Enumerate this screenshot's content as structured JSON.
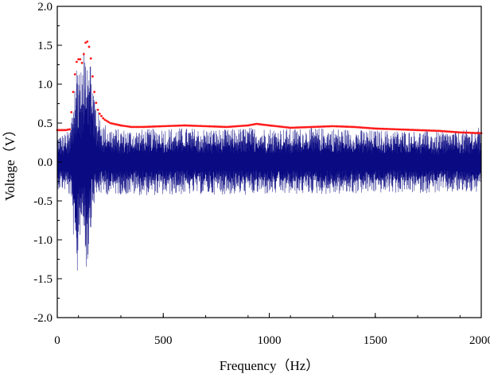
{
  "chart_data": {
    "type": "line",
    "title": "",
    "xlabel": "Frequency（Hz）",
    "ylabel": "Voltage（V）",
    "xlim": [
      0,
      2000
    ],
    "ylim": [
      -2.0,
      2.0
    ],
    "x_ticks": [
      0,
      500,
      1000,
      1500,
      2000
    ],
    "x_tick_labels": [
      "0",
      "500",
      "1000",
      "1500",
      "2000"
    ],
    "y_ticks": [
      2.0,
      1.5,
      1.0,
      0.5,
      0.0,
      -0.5,
      -1.0,
      -1.5,
      -2.0
    ],
    "y_tick_labels": [
      "2.0",
      "1.5",
      "1.0",
      "0.5",
      "0.0",
      "-0.5",
      "-1.0",
      "-1.5",
      "-2.0"
    ],
    "grid": false,
    "legend": "none",
    "series": [
      {
        "style": "signal",
        "color": "#0a0a82",
        "x": [
          0,
          20,
          40,
          60,
          70,
          80,
          90,
          100,
          110,
          120,
          130,
          140,
          150,
          160,
          170,
          180,
          190,
          200,
          220,
          250,
          300,
          400,
          500,
          600,
          700,
          800,
          900,
          950,
          1000,
          1100,
          1200,
          1300,
          1400,
          1500,
          1600,
          1700,
          1800,
          1900,
          2000
        ],
        "upper": [
          0.35,
          0.36,
          0.37,
          0.42,
          0.7,
          1.05,
          1.3,
          1.5,
          1.2,
          1.25,
          1.55,
          1.75,
          1.6,
          1.3,
          1.05,
          0.85,
          0.7,
          0.6,
          0.5,
          0.45,
          0.42,
          0.42,
          0.44,
          0.44,
          0.43,
          0.42,
          0.45,
          0.44,
          0.44,
          0.43,
          0.44,
          0.44,
          0.42,
          0.41,
          0.41,
          0.4,
          0.39,
          0.4,
          0.45
        ],
        "lower": [
          -0.35,
          -0.36,
          -0.38,
          -0.45,
          -0.75,
          -1.1,
          -1.8,
          -1.2,
          -0.9,
          -0.8,
          -1.1,
          -1.5,
          -1.1,
          -0.8,
          -0.6,
          -0.5,
          -0.45,
          -0.42,
          -0.42,
          -0.42,
          -0.42,
          -0.43,
          -0.43,
          -0.42,
          -0.42,
          -0.42,
          -0.43,
          -0.42,
          -0.42,
          -0.42,
          -0.41,
          -0.42,
          -0.41,
          -0.4,
          -0.4,
          -0.4,
          -0.4,
          -0.4,
          -0.4
        ]
      },
      {
        "style": "envelope",
        "color": "#ff1a1a",
        "x": [
          0,
          40,
          60,
          70,
          80,
          90,
          100,
          110,
          120,
          130,
          140,
          150,
          160,
          170,
          180,
          190,
          200,
          220,
          250,
          300,
          350,
          400,
          500,
          600,
          700,
          800,
          900,
          940,
          1000,
          1100,
          1200,
          1300,
          1400,
          1500,
          1600,
          1700,
          1800,
          1900,
          2000
        ],
        "y": [
          0.41,
          0.41,
          0.42,
          0.75,
          1.05,
          1.28,
          1.32,
          1.32,
          1.25,
          1.52,
          1.56,
          1.48,
          1.3,
          1.0,
          0.8,
          0.68,
          0.62,
          0.55,
          0.5,
          0.47,
          0.45,
          0.45,
          0.46,
          0.47,
          0.46,
          0.45,
          0.47,
          0.49,
          0.47,
          0.44,
          0.45,
          0.46,
          0.45,
          0.43,
          0.42,
          0.41,
          0.4,
          0.38,
          0.37
        ]
      }
    ]
  }
}
